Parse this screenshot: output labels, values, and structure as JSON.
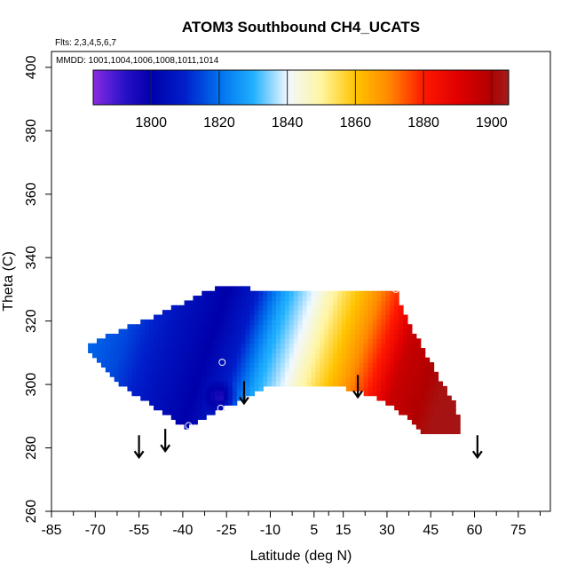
{
  "chart_data": {
    "type": "heatmap",
    "title": "ATOM3 Southbound CH4_UCATS",
    "flights_label": "Flts: 2,3,4,5,6,7",
    "dates_label": "MMDD: 1001,1004,1006,1008,1011,1014",
    "xlabel": "Latitude (deg N)",
    "ylabel": "Theta (C)",
    "xlim": [
      -85,
      86
    ],
    "ylim": [
      260,
      405
    ],
    "x_ticks": [
      -85,
      -70,
      -55,
      -40,
      -25,
      -10,
      5,
      15,
      30,
      45,
      60,
      75
    ],
    "x_tick_labels": [
      "-85",
      "-70",
      "-55",
      "-40",
      "-25",
      "-10",
      "5",
      "15",
      "30",
      "45",
      "60",
      "75"
    ],
    "y_ticks": [
      260,
      280,
      300,
      320,
      340,
      360,
      380,
      400
    ],
    "y_tick_labels": [
      "260",
      "280",
      "300",
      "320",
      "340",
      "360",
      "380",
      "400"
    ],
    "colorbar": {
      "range": [
        1783,
        1905
      ],
      "ticks": [
        1800,
        1820,
        1840,
        1860,
        1880,
        1900
      ],
      "tick_labels": [
        "1800",
        "1820",
        "1840",
        "1860",
        "1880",
        "1900"
      ],
      "colors": [
        {
          "v": 1783,
          "c": "#8a2be2"
        },
        {
          "v": 1792,
          "c": "#2a12c8"
        },
        {
          "v": 1800,
          "c": "#0000aa"
        },
        {
          "v": 1810,
          "c": "#0020cc"
        },
        {
          "v": 1820,
          "c": "#0070ee"
        },
        {
          "v": 1830,
          "c": "#20b0ff"
        },
        {
          "v": 1840,
          "c": "#f0f8ff"
        },
        {
          "v": 1850,
          "c": "#fff5a0"
        },
        {
          "v": 1860,
          "c": "#ffc400"
        },
        {
          "v": 1870,
          "c": "#ff8800"
        },
        {
          "v": 1880,
          "c": "#ff1800"
        },
        {
          "v": 1890,
          "c": "#e00000"
        },
        {
          "v": 1900,
          "c": "#b00000"
        },
        {
          "v": 1905,
          "c": "#a02020"
        }
      ]
    },
    "field_outline": [
      {
        "lat": -73,
        "theta": 312
      },
      {
        "lat": -62,
        "theta": 317
      },
      {
        "lat": -51,
        "theta": 321
      },
      {
        "lat": -44,
        "theta": 324
      },
      {
        "lat": -37,
        "theta": 327
      },
      {
        "lat": -31,
        "theta": 330
      },
      {
        "lat": -24,
        "theta": 331
      },
      {
        "lat": -15,
        "theta": 330
      },
      {
        "lat": 33,
        "theta": 330
      },
      {
        "lat": 37,
        "theta": 320
      },
      {
        "lat": 42,
        "theta": 312
      },
      {
        "lat": 48,
        "theta": 302
      },
      {
        "lat": 53,
        "theta": 294
      },
      {
        "lat": 55,
        "theta": 288
      },
      {
        "lat": 55,
        "theta": 284
      },
      {
        "lat": 43,
        "theta": 284
      },
      {
        "lat": 36,
        "theta": 290
      },
      {
        "lat": 29,
        "theta": 295
      },
      {
        "lat": 20,
        "theta": 298
      },
      {
        "lat": 8,
        "theta": 300
      },
      {
        "lat": -10,
        "theta": 300
      },
      {
        "lat": -18,
        "theta": 296
      },
      {
        "lat": -27,
        "theta": 292
      },
      {
        "lat": -39,
        "theta": 286
      },
      {
        "lat": -45,
        "theta": 290
      },
      {
        "lat": -53,
        "theta": 295
      },
      {
        "lat": -60,
        "theta": 299
      },
      {
        "lat": -66,
        "theta": 304
      },
      {
        "lat": -72,
        "theta": 310
      }
    ],
    "field_grid": {
      "lat_step": 1.5,
      "theta_step": 1.5,
      "lat_anchor_values": [
        {
          "lat": -75,
          "value": 1820
        },
        {
          "lat": -60,
          "value": 1815
        },
        {
          "lat": -45,
          "value": 1806
        },
        {
          "lat": -30,
          "value": 1800
        },
        {
          "lat": -20,
          "value": 1808
        },
        {
          "lat": -10,
          "value": 1828
        },
        {
          "lat": 0,
          "value": 1840
        },
        {
          "lat": 10,
          "value": 1854
        },
        {
          "lat": 20,
          "value": 1866
        },
        {
          "lat": 30,
          "value": 1880
        },
        {
          "lat": 38,
          "value": 1895
        },
        {
          "lat": 55,
          "value": 1903
        }
      ]
    },
    "flight_markers": [
      {
        "lat": -26.5,
        "theta": 307
      },
      {
        "lat": -27,
        "theta": 292.5
      },
      {
        "lat": -38,
        "theta": 287
      },
      {
        "lat": 33,
        "theta": 330
      }
    ],
    "arrows": [
      {
        "lat": -55,
        "theta_top": 284,
        "theta_tip": 277
      },
      {
        "lat": -46,
        "theta_top": 286,
        "theta_tip": 279
      },
      {
        "lat": -19,
        "theta_top": 301,
        "theta_tip": 294
      },
      {
        "lat": 20,
        "theta_top": 303,
        "theta_tip": 296
      },
      {
        "lat": 61,
        "theta_top": 284,
        "theta_tip": 277
      }
    ]
  }
}
